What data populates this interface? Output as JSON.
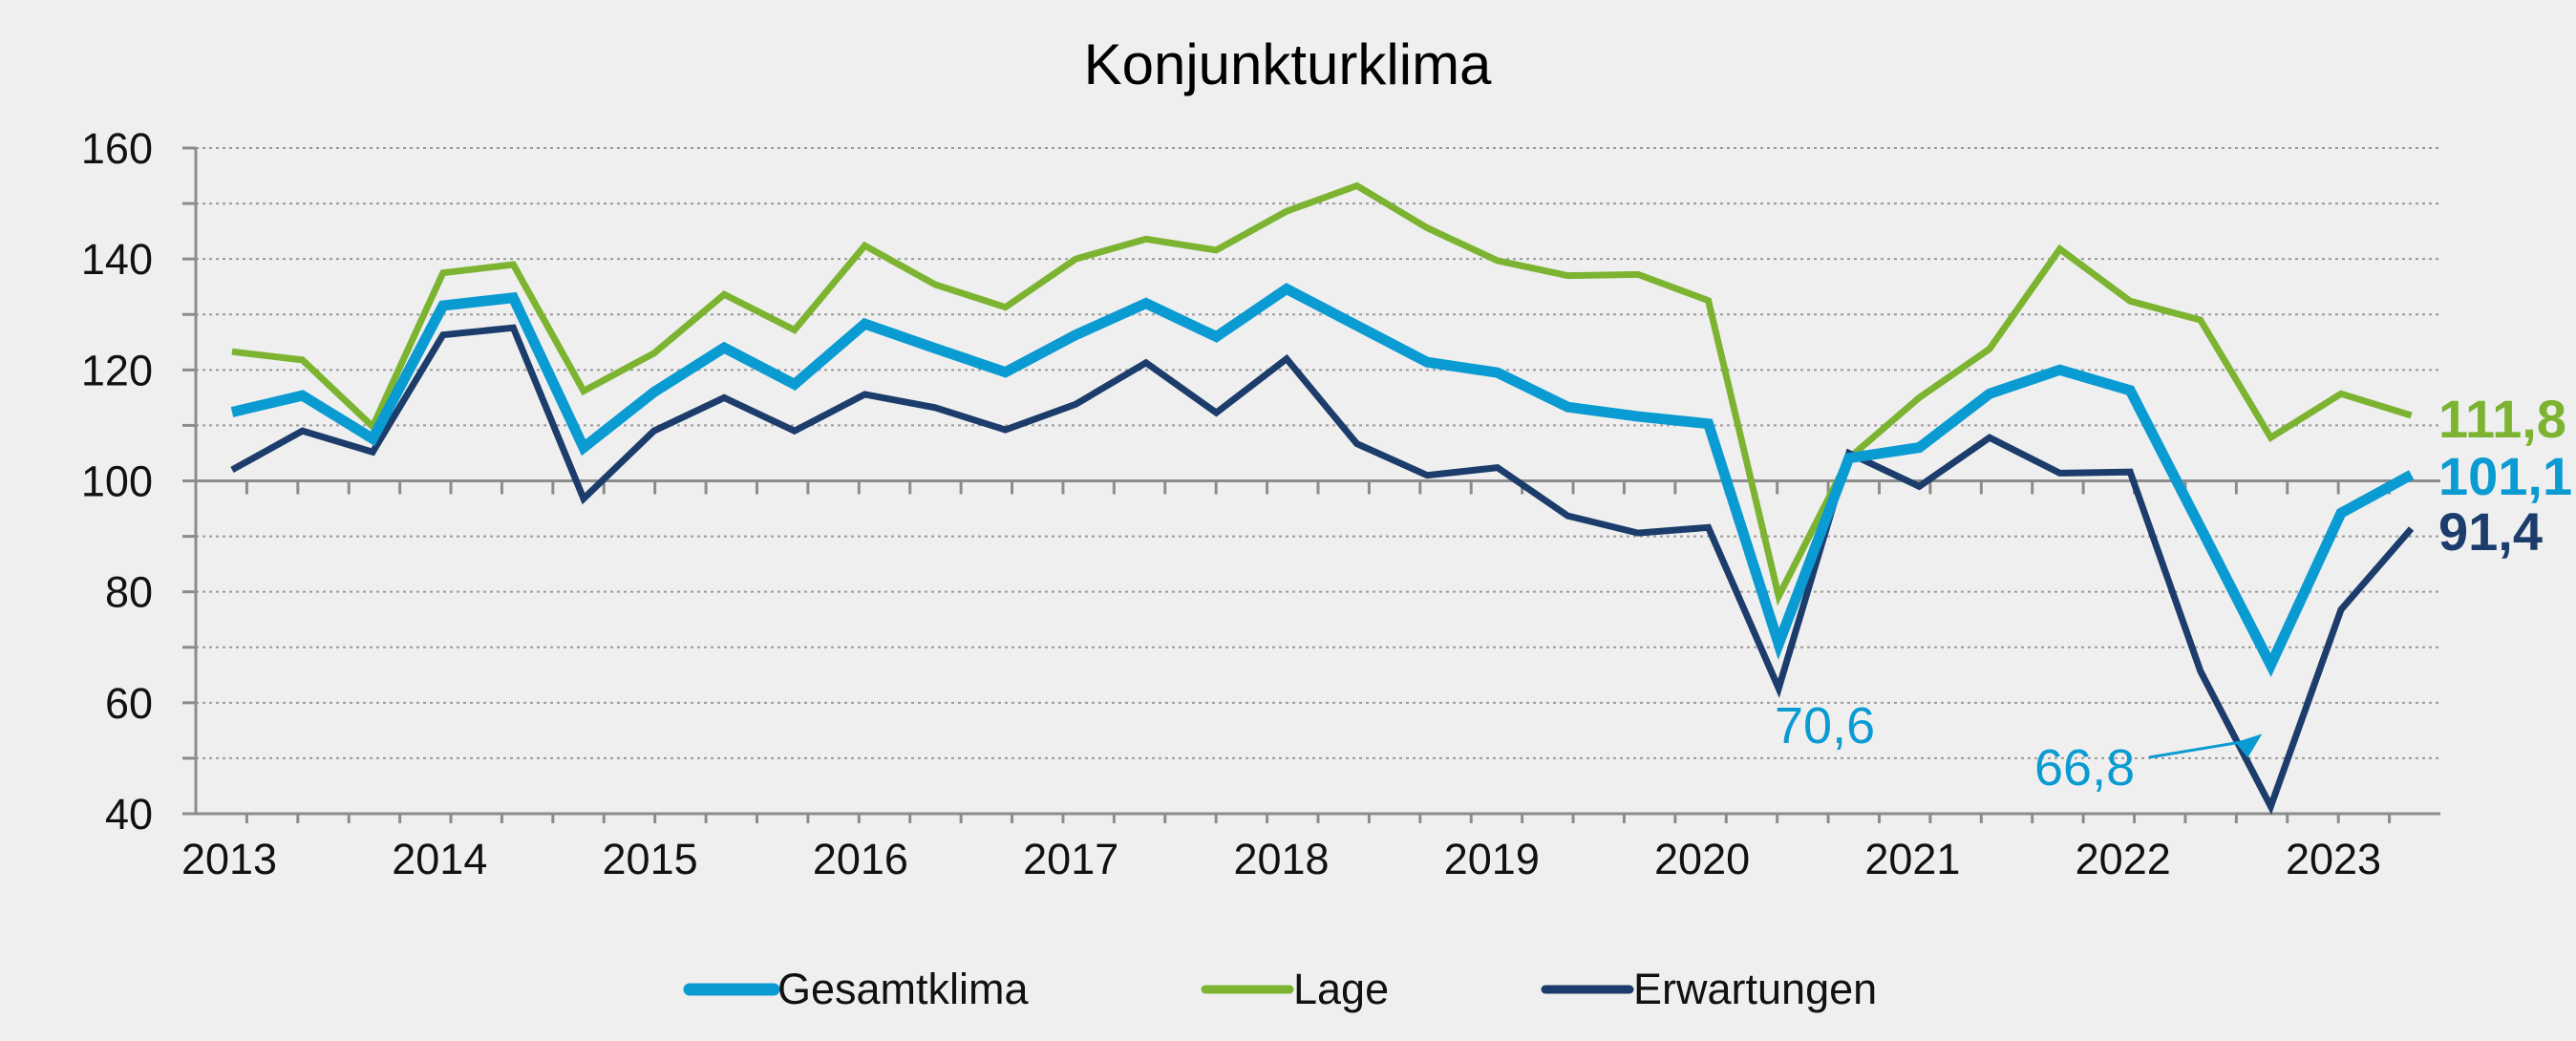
{
  "chart_data": {
    "type": "line",
    "title": "Konjunkturklima",
    "xlabel": "",
    "ylabel": "",
    "ylim": [
      40,
      160
    ],
    "yticks": [
      40,
      60,
      80,
      100,
      120,
      140,
      160
    ],
    "year_labels": [
      "2013",
      "2014",
      "2015",
      "2016",
      "2017",
      "2018",
      "2019",
      "2020",
      "2021",
      "2022",
      "2023"
    ],
    "grid": true,
    "legend_position": "bottom",
    "x": [
      "2013 Q1",
      "2013 Q2",
      "2013 Q3",
      "2014 Q1",
      "2014 Q2",
      "2014 Q3",
      "2015 Q1",
      "2015 Q2",
      "2015 Q3",
      "2016 Q1",
      "2016 Q2",
      "2016 Q3",
      "2017 Q1",
      "2017 Q2",
      "2017 Q3",
      "2018 Q1",
      "2018 Q2",
      "2018 Q3",
      "2019 Q1",
      "2019 Q2",
      "2019 Q3",
      "2020 Q1",
      "2020 Q2",
      "2020 Q3",
      "2021 Q1",
      "2021 Q2",
      "2021 Q3",
      "2022 Q1",
      "2022 Q2",
      "2022 Q3",
      "2023 Q1",
      "2023 Q2"
    ],
    "series": [
      {
        "name": "Gesamtklima",
        "color": "#0a9bd2",
        "values": [
          112.4,
          115.4,
          107.6,
          131.6,
          133.0,
          106.0,
          116.0,
          124.0,
          117.4,
          128.3,
          123.9,
          119.6,
          126.3,
          132.0,
          126.0,
          134.6,
          128.0,
          121.4,
          119.5,
          113.3,
          111.6,
          110.3,
          70.6,
          104.1,
          106.0,
          115.7,
          120.0,
          116.3,
          91.6,
          66.8,
          94.2,
          101.1
        ],
        "end_label": "101,1"
      },
      {
        "name": "Lage",
        "color": "#7cb431",
        "values": [
          123.3,
          121.8,
          109.8,
          137.5,
          139.0,
          116.2,
          123.0,
          133.6,
          127.2,
          142.4,
          135.4,
          131.3,
          140.0,
          143.6,
          141.6,
          148.6,
          153.2,
          145.6,
          139.7,
          137.0,
          137.2,
          132.5,
          79.2,
          104.1,
          115.0,
          123.8,
          141.8,
          132.4,
          129.0,
          107.8,
          115.7,
          111.8
        ],
        "end_label": "111,8"
      },
      {
        "name": "Erwartungen",
        "color": "#1c3d6b",
        "values": [
          102.0,
          109.0,
          105.2,
          126.3,
          127.6,
          96.8,
          109.0,
          115.0,
          109.0,
          115.6,
          113.2,
          109.2,
          113.8,
          121.3,
          112.3,
          122.0,
          106.7,
          101.0,
          102.4,
          93.7,
          90.6,
          91.6,
          62.6,
          105.0,
          99.0,
          107.8,
          101.4,
          101.6,
          65.7,
          41.3,
          76.8,
          91.4
        ],
        "end_label": "91,4"
      }
    ],
    "annotations": [
      {
        "text": "70,6",
        "series": "Gesamtklima",
        "x": "2020 Q2",
        "value": 70.6
      },
      {
        "text": "66,8",
        "series": "Gesamtklima",
        "x": "2022 Q3",
        "value": 66.8
      }
    ]
  }
}
